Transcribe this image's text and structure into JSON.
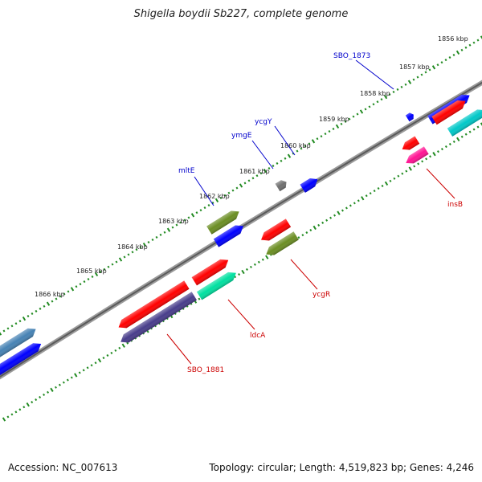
{
  "title": "Shigella boydii Sb227, complete genome",
  "accession": "Accession: NC_007613",
  "topology": "Topology: circular; Length: 4,519,823 bp; Genes: 4,246",
  "colors": {
    "backbone": "#808080",
    "tick_dots": "#228B22",
    "forward_label": "#0000CC",
    "reverse_label": "#CC0000"
  },
  "ticks": [
    {
      "label": "1856 kbp"
    },
    {
      "label": "1857 kbp"
    },
    {
      "label": "1858 kbp"
    },
    {
      "label": "1859 kbp"
    },
    {
      "label": "1860 kbp"
    },
    {
      "label": "1861 kbp"
    },
    {
      "label": "1862 kbp"
    },
    {
      "label": "1863 kbp"
    },
    {
      "label": "1864 kbp"
    },
    {
      "label": "1865 kbp"
    },
    {
      "label": "1866 kbp"
    }
  ],
  "gene_labels": [
    {
      "text": "SBO_1873",
      "strand": "forward"
    },
    {
      "text": "ycgY",
      "strand": "forward"
    },
    {
      "text": "ymgE",
      "strand": "forward"
    },
    {
      "text": "mltE",
      "strand": "forward"
    },
    {
      "text": "insB",
      "strand": "reverse"
    },
    {
      "text": "ycgR",
      "strand": "reverse"
    },
    {
      "text": "ldcA",
      "strand": "reverse"
    },
    {
      "text": "SBO_1881",
      "strand": "reverse"
    }
  ],
  "genes": [
    {
      "color": "#0000FF",
      "strand": "forward"
    },
    {
      "color": "#FF0000",
      "strand": "forward"
    },
    {
      "color": "#00C8C8",
      "strand": "forward"
    },
    {
      "color": "#FF0000",
      "strand": "reverse"
    },
    {
      "color": "#FF1493",
      "strand": "reverse"
    },
    {
      "color": "#0000FF",
      "strand": "forward"
    },
    {
      "color": "#707070",
      "strand": "forward"
    },
    {
      "color": "#0000FF",
      "strand": "forward"
    },
    {
      "color": "#6B8E23",
      "strand": "forward"
    },
    {
      "color": "#0000FF",
      "strand": "forward"
    },
    {
      "color": "#FF0000",
      "strand": "reverse"
    },
    {
      "color": "#6B8E23",
      "strand": "reverse"
    },
    {
      "color": "#FF0000",
      "strand": "forward"
    },
    {
      "color": "#00E0A0",
      "strand": "forward"
    },
    {
      "color": "#FF0000",
      "strand": "reverse"
    },
    {
      "color": "#483D8B",
      "strand": "reverse"
    },
    {
      "color": "#4682B4",
      "strand": "forward"
    },
    {
      "color": "#0000FF",
      "strand": "forward"
    }
  ]
}
